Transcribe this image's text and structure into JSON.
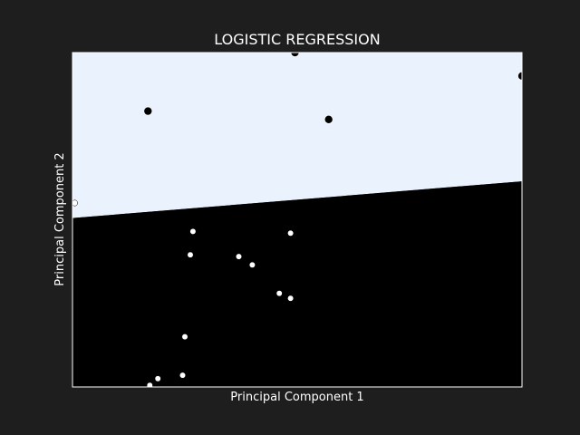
{
  "chart_data": {
    "type": "scatter",
    "title": "LOGISTIC REGRESSION",
    "xlabel": "Principal Component 1",
    "ylabel": "Principal Component 2",
    "xlim": [
      0,
      10
    ],
    "ylim": [
      0,
      10
    ],
    "grid": false,
    "ticks_visible": false,
    "decision_boundary": {
      "points": [
        [
          0,
          5.05
        ],
        [
          10,
          6.15
        ]
      ],
      "region_above_color": "#eaf2fd",
      "region_below_color": "#000000"
    },
    "series": [
      {
        "color": "#000000",
        "points": [
          [
            1.68,
            8.25
          ],
          [
            4.95,
            10.0
          ],
          [
            5.7,
            8.0
          ],
          [
            10.0,
            9.3
          ]
        ]
      },
      {
        "color": "#ffffff",
        "points": [
          [
            0.05,
            5.5
          ],
          [
            2.68,
            4.65
          ],
          [
            4.85,
            4.6
          ],
          [
            2.62,
            3.95
          ],
          [
            3.7,
            3.9
          ],
          [
            4.0,
            3.65
          ],
          [
            4.6,
            2.8
          ],
          [
            4.85,
            2.65
          ],
          [
            2.5,
            1.5
          ],
          [
            2.45,
            0.35
          ],
          [
            1.9,
            0.25
          ],
          [
            1.72,
            0.05
          ]
        ]
      }
    ]
  }
}
